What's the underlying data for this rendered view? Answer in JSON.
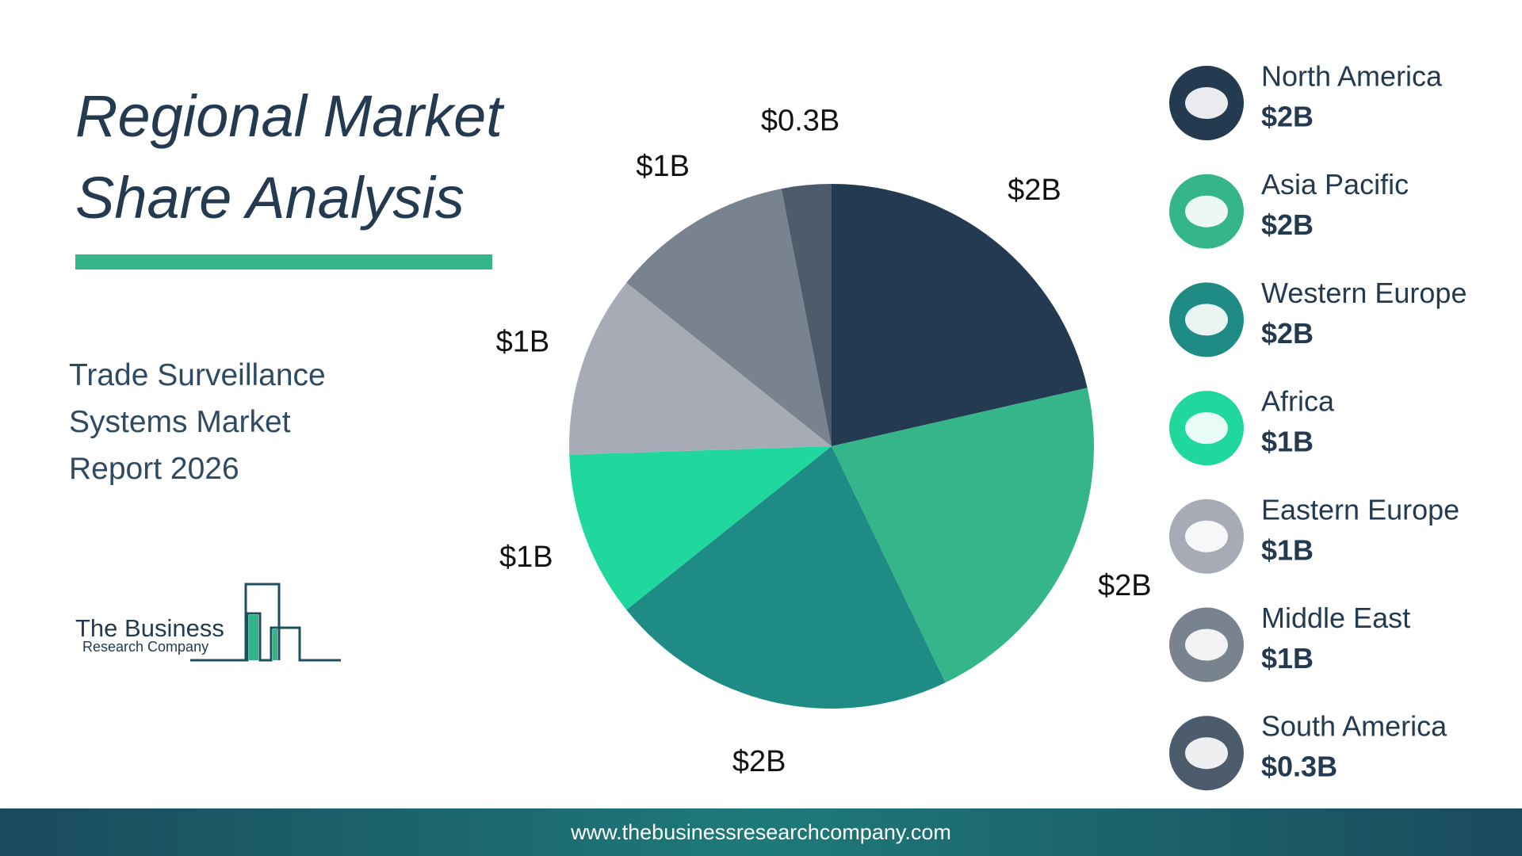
{
  "header": {
    "title": "Regional Market Share Analysis",
    "subtitle": "Trade Surveillance Systems Market Report 2026"
  },
  "logo": {
    "line1": "The Business",
    "line2": "Research Company"
  },
  "footer": {
    "url": "www.thebusinessresearchcompany.com"
  },
  "chart_data": {
    "type": "pie",
    "categories": [
      "North America",
      "Asia Pacific",
      "Western Europe",
      "Africa",
      "Eastern Europe",
      "Middle East",
      "South America"
    ],
    "values": [
      2.1,
      2.1,
      2.1,
      1.0,
      1.1,
      1.1,
      0.3
    ],
    "value_labels": [
      "$2B",
      "$2B",
      "$2B",
      "$1B",
      "$1B",
      "$1B",
      "$0.3B"
    ],
    "colors": [
      "#243a50",
      "#34b68a",
      "#1e8c85",
      "#20d89e",
      "#a6abb5",
      "#79828f",
      "#4d5c6c"
    ]
  }
}
